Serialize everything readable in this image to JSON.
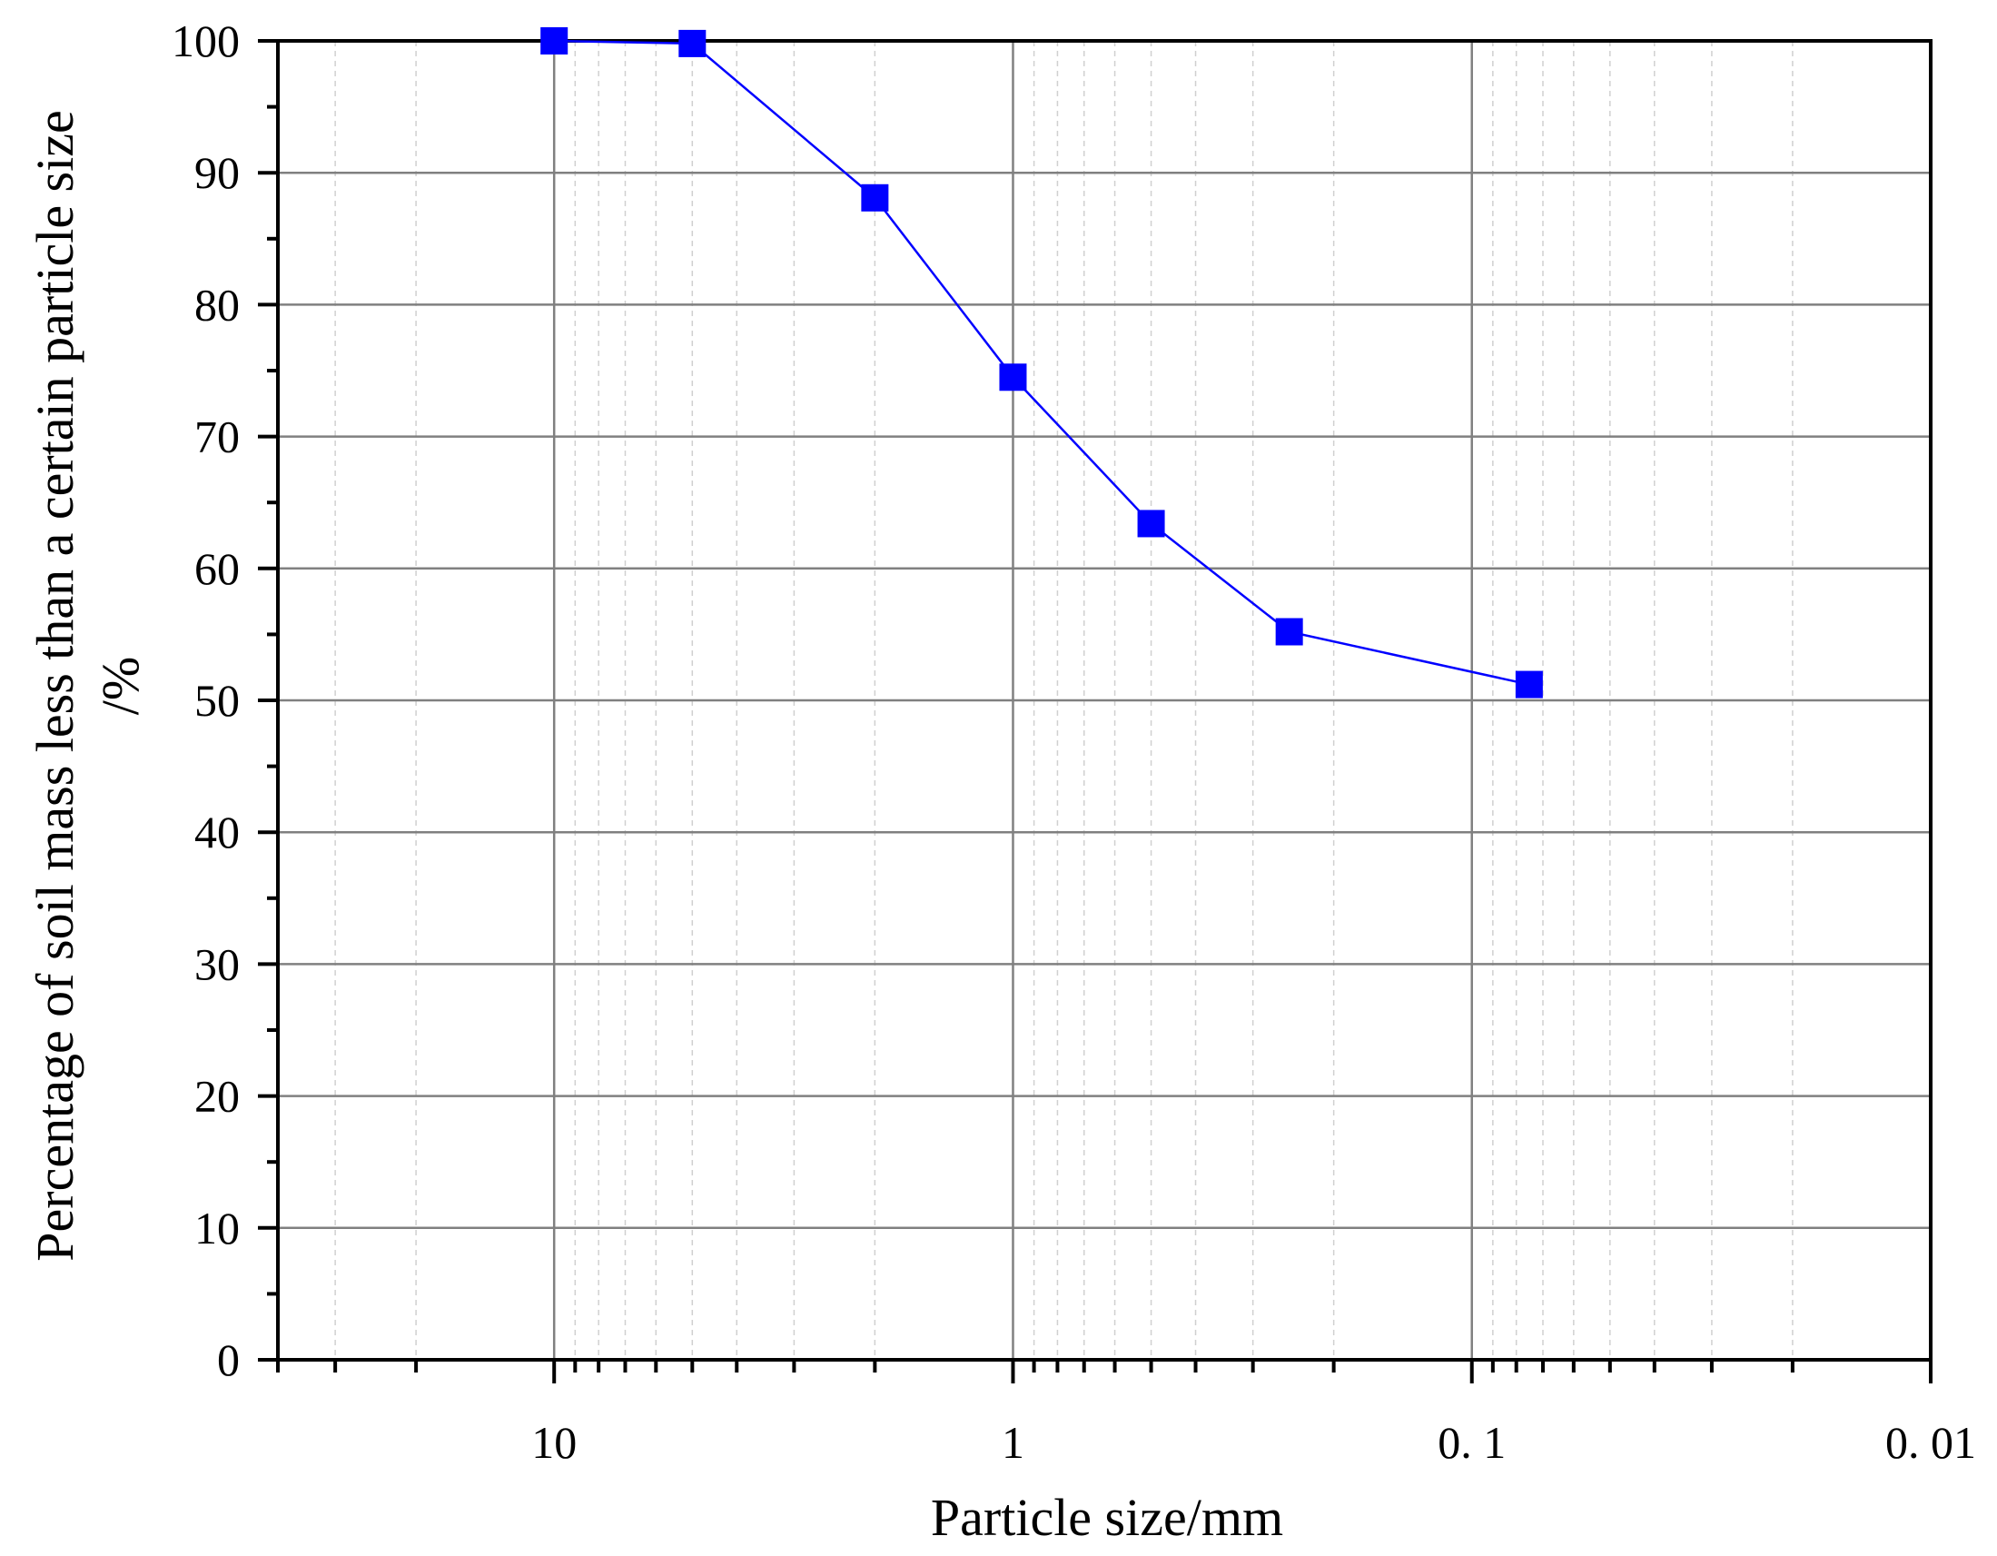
{
  "chart_data": {
    "type": "line",
    "title": "",
    "xlabel": "Particle size/mm",
    "ylabel_line1": "Percentage of soil mass less than a certain particle size",
    "ylabel_line2": "/%",
    "x_scale": "log",
    "x_reversed": true,
    "xlim": [
      40,
      0.01
    ],
    "ylim": [
      0,
      100
    ],
    "x_ticks": [
      {
        "value": 10,
        "label": "10"
      },
      {
        "value": 1,
        "label": "1"
      },
      {
        "value": 0.1,
        "label": "0. 1"
      },
      {
        "value": 0.01,
        "label": "0. 01"
      }
    ],
    "y_ticks": [
      {
        "value": 0,
        "label": "0"
      },
      {
        "value": 10,
        "label": "10"
      },
      {
        "value": 20,
        "label": "20"
      },
      {
        "value": 30,
        "label": "30"
      },
      {
        "value": 40,
        "label": "40"
      },
      {
        "value": 50,
        "label": "50"
      },
      {
        "value": 60,
        "label": "60"
      },
      {
        "value": 70,
        "label": "70"
      },
      {
        "value": 80,
        "label": "80"
      },
      {
        "value": 90,
        "label": "90"
      },
      {
        "value": 100,
        "label": "100"
      }
    ],
    "grid": true,
    "series": [
      {
        "color": "#0000ff",
        "marker": "square",
        "points": [
          {
            "x": 10,
            "y": 100
          },
          {
            "x": 5,
            "y": 99.8
          },
          {
            "x": 2,
            "y": 88.1
          },
          {
            "x": 1,
            "y": 74.5
          },
          {
            "x": 0.5,
            "y": 63.4
          },
          {
            "x": 0.25,
            "y": 55.2
          },
          {
            "x": 0.075,
            "y": 51.2
          }
        ]
      }
    ],
    "colors": {
      "axis": "#000000",
      "major_grid": "#808080",
      "minor_grid": "#d0d0d0"
    }
  }
}
